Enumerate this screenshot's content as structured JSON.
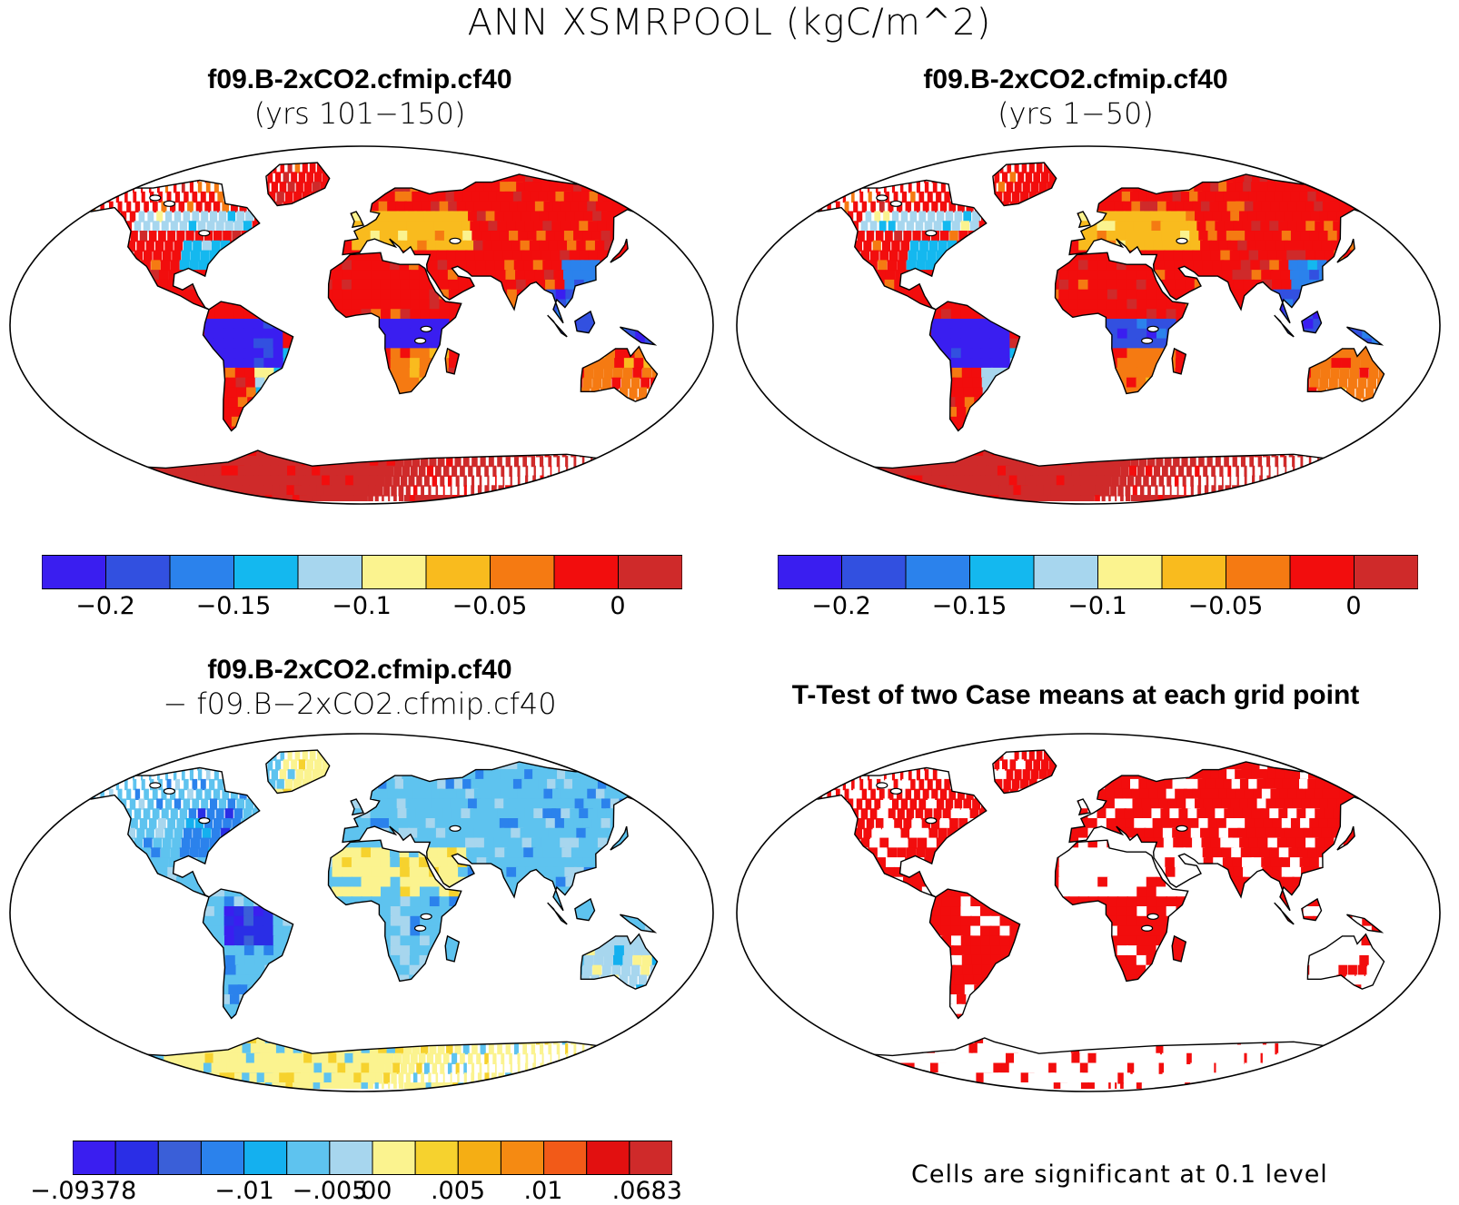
{
  "figure": {
    "title": "ANN XSMRPOOL (kgC/m^2)"
  },
  "panels": [
    {
      "line1": "f09.B-2xCO2.cfmip.cf40",
      "line2": "(yrs 101−150)",
      "scheme": "abs"
    },
    {
      "line1": "f09.B-2xCO2.cfmip.cf40",
      "line2": "(yrs 1−50)",
      "scheme": "abs"
    },
    {
      "line1": "f09.B-2xCO2.cfmip.cf40",
      "line2": "− f09.B−2xCO2.cfmip.cf40",
      "scheme": "diff"
    },
    {
      "line1": "T-Test of two Case means at each grid point",
      "line2": "",
      "scheme": "ttest"
    }
  ],
  "colorbars": {
    "abs": {
      "colors": [
        "#3a1ef0",
        "#3250e0",
        "#2b82ec",
        "#14b8ef",
        "#a7d6ee",
        "#fbf38f",
        "#f9bb1e",
        "#f57a12",
        "#f20d0d",
        "#cf2a2a"
      ],
      "labels": [
        "−0.2",
        "−0.15",
        "−0.1",
        "−0.05",
        "0"
      ]
    },
    "diff": {
      "colors": [
        "#3a1ef0",
        "#2a2ee6",
        "#3a5fd8",
        "#2b82ec",
        "#14b0ef",
        "#5ec3ef",
        "#a7d6ee",
        "#fbf38f",
        "#f6d22e",
        "#f5ae14",
        "#f58a12",
        "#f25a18",
        "#e21010",
        "#cf2a2a"
      ],
      "labels": [
        "−.09378",
        "−.01",
        "−.005",
        ".00",
        ".005",
        ".01",
        ".0683"
      ]
    }
  },
  "ttest_note": "Cells are significant at 0.1 level"
}
